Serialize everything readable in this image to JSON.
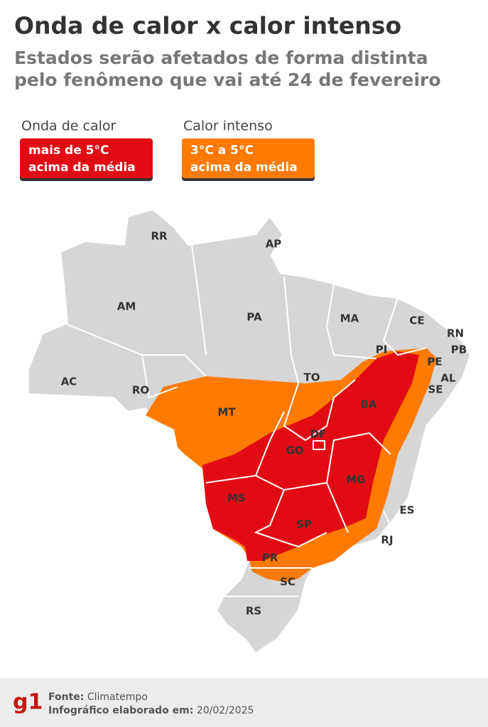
{
  "header": {
    "title": "Onda de calor x calor intenso",
    "subtitle_lines": [
      "Estados serão afetados de forma distinta",
      "pelo fenômeno que vai até 24 de fevereiro"
    ]
  },
  "legend": [
    {
      "label": "Onda de calor",
      "description_lines": [
        "mais de 5°C",
        "acima da média"
      ],
      "color": "#e30b13"
    },
    {
      "label": "Calor intenso",
      "description_lines": [
        "3°C a 5°C",
        "acima da média"
      ],
      "color": "#ff7a00"
    }
  ],
  "map": {
    "states": [
      "RR",
      "AP",
      "AM",
      "PA",
      "MA",
      "CE",
      "RN",
      "PB",
      "PI",
      "PE",
      "AL",
      "SE",
      "AC",
      "RO",
      "TO",
      "MT",
      "BA",
      "DF",
      "GO",
      "MG",
      "ES",
      "MS",
      "SP",
      "RJ",
      "PR",
      "SC",
      "RS"
    ]
  },
  "footer": {
    "logo": "g1",
    "source_label": "Fonte:",
    "source": "Climatempo",
    "credit_label": "Infográfico elaborado em:",
    "date": "20/02/2025"
  }
}
